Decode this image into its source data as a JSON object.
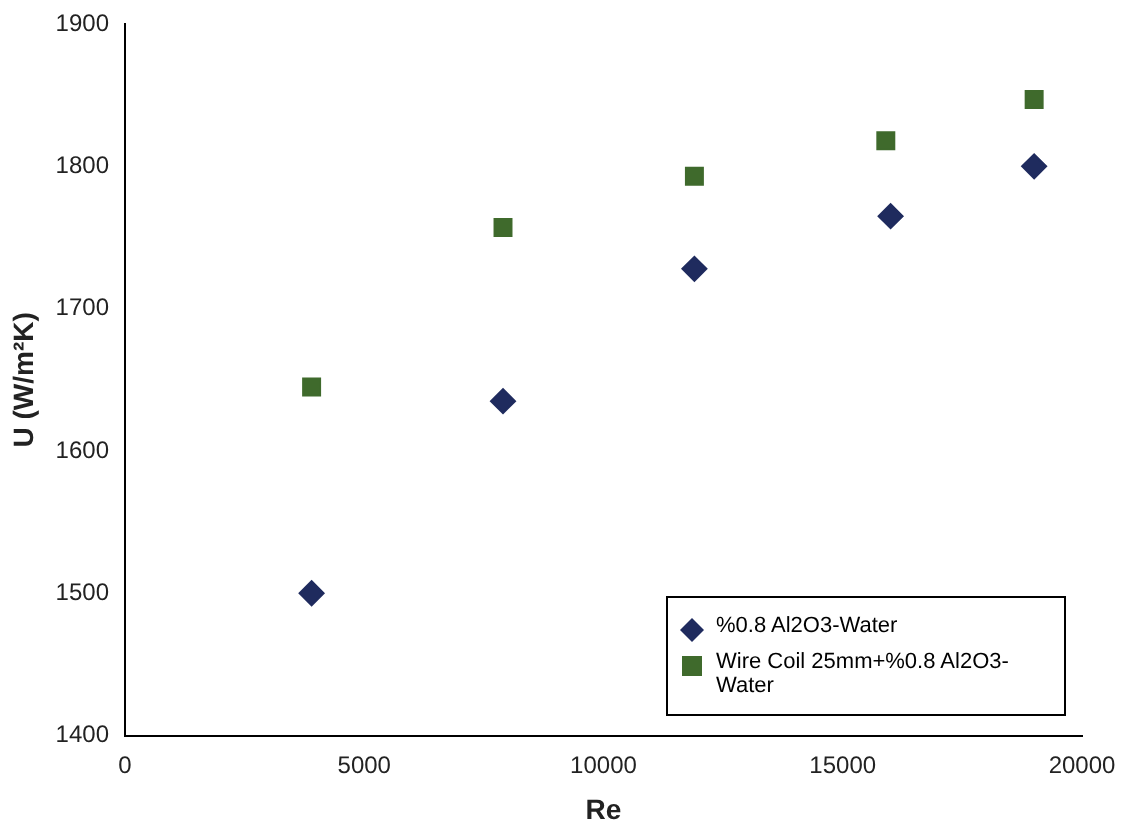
{
  "chart_data": {
    "type": "scatter",
    "xlabel": "Re",
    "ylabel": "U (W/m²K)",
    "xlim": [
      0,
      20000
    ],
    "xticks": [
      0,
      5000,
      10000,
      15000,
      20000
    ],
    "ylim": [
      1400,
      1900
    ],
    "yticks": [
      1400,
      1500,
      1600,
      1700,
      1800,
      1900
    ],
    "grid": false,
    "legend": "bottom right",
    "series": [
      {
        "name": "%0.8 Al2O3-Water",
        "color": "#1f2b5e",
        "marker": "diamond",
        "x": [
          3900,
          7900,
          11900,
          16000,
          19000
        ],
        "values": [
          1500,
          1635,
          1728,
          1765,
          1800
        ]
      },
      {
        "name": "Wire Coil 25mm+%0.8 Al2O3-Water",
        "color": "#3f6a2c",
        "marker": "square",
        "x": [
          3900,
          7900,
          11900,
          15900,
          19000
        ],
        "values": [
          1645,
          1757,
          1793,
          1818,
          1847
        ]
      }
    ]
  }
}
